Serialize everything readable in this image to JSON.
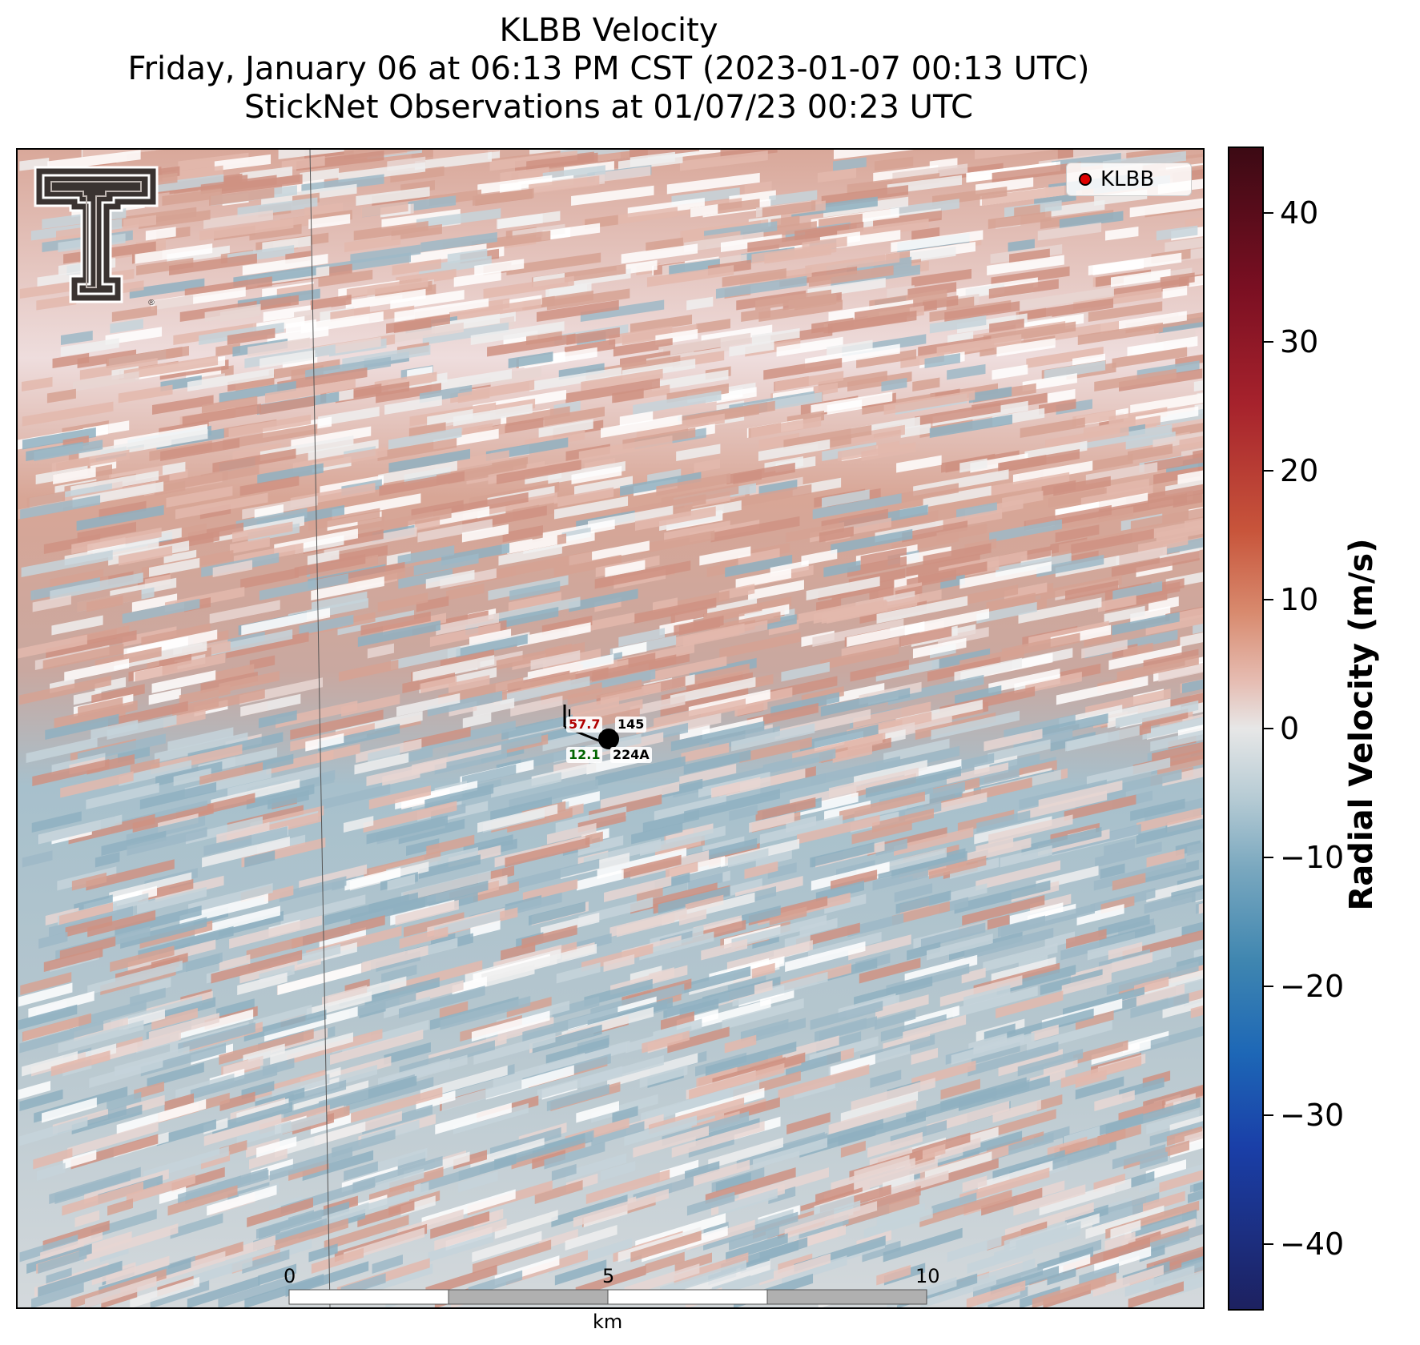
{
  "title": {
    "line1": "KLBB Velocity",
    "line2": "Friday, January 06 at 06:13 PM CST (2023-01-07 00:13 UTC)",
    "line3": "StickNet Observations at 01/07/23 00:23 UTC"
  },
  "legend": {
    "label": "KLBB",
    "marker_color": "#e00000"
  },
  "colorbar": {
    "label": "Radial Velocity (m/s)",
    "range": [
      -45,
      45
    ],
    "ticks": [
      "40",
      "30",
      "20",
      "10",
      "0",
      "−10",
      "−20",
      "−30",
      "−40"
    ],
    "tick_values": [
      40,
      30,
      20,
      10,
      0,
      -10,
      -20,
      -30,
      -40
    ]
  },
  "scale_bar": {
    "labels": [
      "0",
      "5",
      "10"
    ],
    "unit": "km"
  },
  "station": {
    "temperature": "57.7",
    "id": "145",
    "dewpoint": "12.1",
    "name": "224A",
    "temperature_color": "#b00000",
    "dewpoint_color": "#006400"
  },
  "colors": {
    "inbound": "#9db9c7",
    "outbound": "#d6a293",
    "neutral": "#eeeeee"
  }
}
